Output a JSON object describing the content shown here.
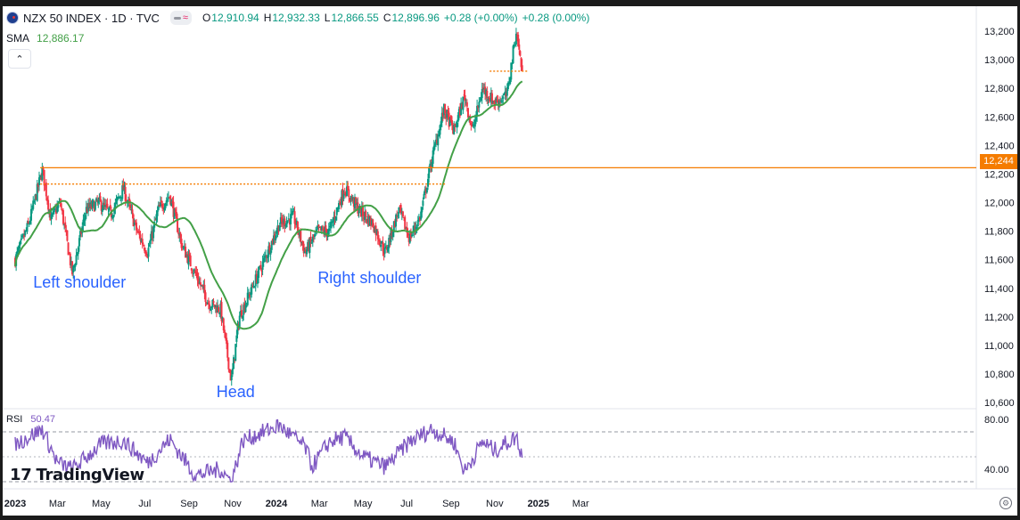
{
  "legend": {
    "symbol_title": "NZX 50 INDEX · 1D · TVC",
    "open_label": "O",
    "open": "12,910.94",
    "high_label": "H",
    "high": "12,932.33",
    "low_label": "L",
    "low": "12,866.55",
    "close_label": "C",
    "close": "12,896.96",
    "change": "+0.28 (+0.00%)",
    "change2": "+0.28 (0.00%)",
    "sma_label": "SMA",
    "sma_value": "12,886.17",
    "collapse_glyph": "⌃"
  },
  "rsi_legend": {
    "label": "RSI",
    "value": "50.47"
  },
  "branding": {
    "mark": "17",
    "name": "TradingView"
  },
  "price_tag": "12,244",
  "colors": {
    "up": "#089981",
    "down": "#f23645",
    "sma": "#43a047",
    "rsi": "#7e57c2",
    "level": "#f57c00",
    "annotation": "#2962ff",
    "text": "#131722",
    "axis_text": "#131722"
  },
  "chart_data": {
    "type": "candlestick",
    "title": "NZX 50 INDEX · 1D · TVC",
    "ylim": [
      10550,
      13300
    ],
    "y_ticks": [
      13200,
      13000,
      12800,
      12600,
      12400,
      12200,
      12000,
      11800,
      11600,
      11400,
      11200,
      11000,
      10800,
      10600
    ],
    "y_tick_labels": [
      "13,200",
      "13,000",
      "12,800",
      "12,600",
      "12,400",
      "12,200",
      "12,000",
      "11,800",
      "11,600",
      "11,400",
      "11,200",
      "11,000",
      "10,800",
      "10,600"
    ],
    "x_labels": [
      "2023",
      "Mar",
      "May",
      "Jul",
      "Sep",
      "Nov",
      "2024",
      "Mar",
      "May",
      "Jul",
      "Sep",
      "Nov",
      "2025",
      "Mar"
    ],
    "price_path": [
      [
        "2023-01-01",
        11600
      ],
      [
        "2023-01-20",
        11850
      ],
      [
        "2023-02-08",
        12230
      ],
      [
        "2023-02-20",
        11880
      ],
      [
        "2023-03-05",
        12000
      ],
      [
        "2023-03-22",
        11500
      ],
      [
        "2023-04-10",
        11950
      ],
      [
        "2023-04-28",
        12000
      ],
      [
        "2023-05-15",
        11920
      ],
      [
        "2023-06-01",
        12100
      ],
      [
        "2023-06-20",
        11800
      ],
      [
        "2023-07-05",
        11650
      ],
      [
        "2023-07-20",
        11950
      ],
      [
        "2023-08-05",
        12050
      ],
      [
        "2023-08-22",
        11700
      ],
      [
        "2023-09-10",
        11500
      ],
      [
        "2023-09-28",
        11300
      ],
      [
        "2023-10-15",
        11250
      ],
      [
        "2023-10-30",
        10750
      ],
      [
        "2023-11-10",
        11200
      ],
      [
        "2023-11-28",
        11400
      ],
      [
        "2023-12-15",
        11600
      ],
      [
        "2024-01-05",
        11850
      ],
      [
        "2024-01-25",
        11900
      ],
      [
        "2024-02-10",
        11650
      ],
      [
        "2024-02-28",
        11800
      ],
      [
        "2024-03-15",
        11800
      ],
      [
        "2024-04-05",
        12100
      ],
      [
        "2024-04-25",
        11950
      ],
      [
        "2024-05-15",
        11850
      ],
      [
        "2024-06-01",
        11650
      ],
      [
        "2024-06-20",
        11950
      ],
      [
        "2024-07-05",
        11750
      ],
      [
        "2024-07-20",
        11900
      ],
      [
        "2024-08-05",
        12300
      ],
      [
        "2024-08-22",
        12650
      ],
      [
        "2024-09-05",
        12500
      ],
      [
        "2024-09-20",
        12750
      ],
      [
        "2024-10-01",
        12500
      ],
      [
        "2024-10-15",
        12800
      ],
      [
        "2024-11-01",
        12700
      ],
      [
        "2024-11-18",
        12750
      ],
      [
        "2024-12-01",
        13200
      ],
      [
        "2024-12-10",
        12900
      ]
    ],
    "sma_series_name": "SMA",
    "sma_last": 12886.17,
    "levels": [
      {
        "value": 12244,
        "style": "solid",
        "from": "2023-02-05",
        "to": "end"
      },
      {
        "value": 12130,
        "style": "dotted",
        "from": "2023-02-05",
        "to": "2024-08-25"
      },
      {
        "value": 12920,
        "style": "dotted",
        "from": "2024-10-25",
        "to": "2024-12-18"
      }
    ],
    "annotations": [
      {
        "text": "Left shoulder",
        "date": "2023-04-01"
      },
      {
        "text": "Head",
        "date": "2023-11-05"
      },
      {
        "text": "Right shoulder",
        "date": "2024-05-10"
      }
    ],
    "rsi": {
      "name": "RSI",
      "last": 50.47,
      "ylim": [
        30,
        82
      ],
      "y_tick_labels": [
        "80.00",
        "40.00"
      ],
      "bands": [
        70,
        50,
        30
      ],
      "path": [
        [
          "2023-01-01",
          60
        ],
        [
          "2023-02-08",
          72
        ],
        [
          "2023-03-01",
          45
        ],
        [
          "2023-03-22",
          40
        ],
        [
          "2023-05-01",
          60
        ],
        [
          "2023-06-01",
          63
        ],
        [
          "2023-07-05",
          45
        ],
        [
          "2023-08-05",
          64
        ],
        [
          "2023-09-10",
          35
        ],
        [
          "2023-10-15",
          40
        ],
        [
          "2023-10-30",
          30
        ],
        [
          "2023-11-15",
          63
        ],
        [
          "2024-01-05",
          75
        ],
        [
          "2024-02-10",
          58
        ],
        [
          "2024-02-20",
          42
        ],
        [
          "2024-03-15",
          62
        ],
        [
          "2024-04-05",
          66
        ],
        [
          "2024-05-01",
          50
        ],
        [
          "2024-06-01",
          42
        ],
        [
          "2024-07-05",
          62
        ],
        [
          "2024-08-05",
          72
        ],
        [
          "2024-09-05",
          62
        ],
        [
          "2024-09-20",
          38
        ],
        [
          "2024-10-15",
          62
        ],
        [
          "2024-11-01",
          55
        ],
        [
          "2024-12-01",
          66
        ],
        [
          "2024-12-10",
          50
        ]
      ]
    }
  }
}
